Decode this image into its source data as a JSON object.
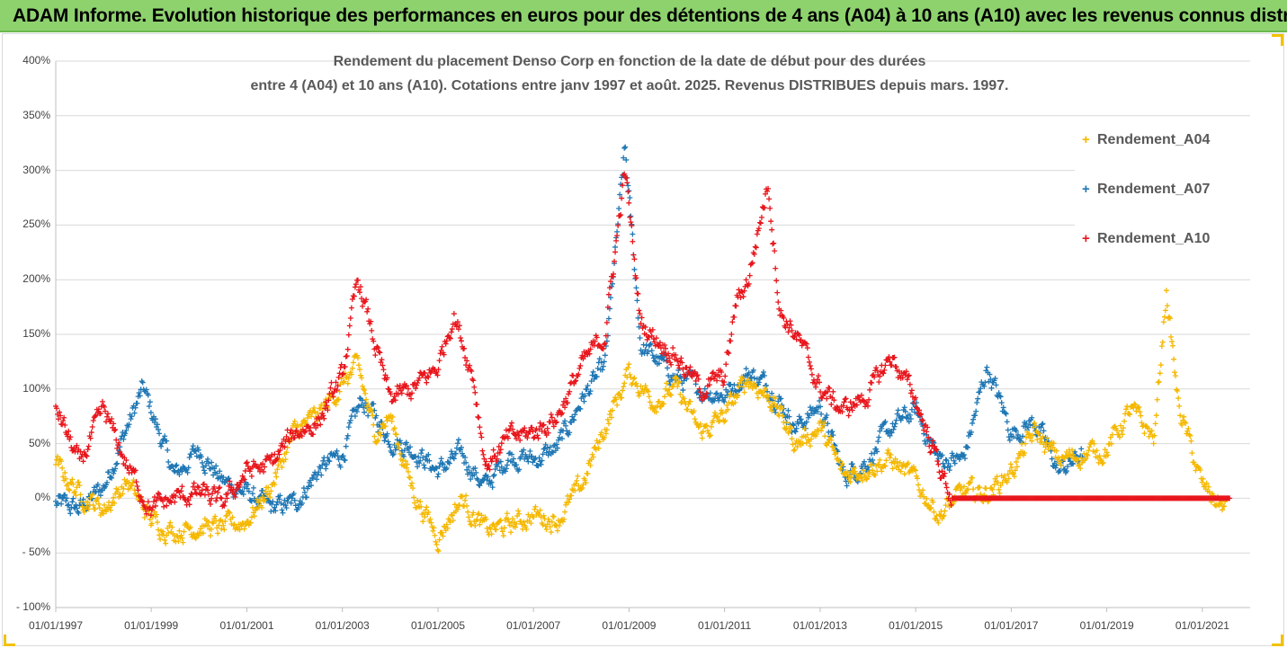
{
  "header": {
    "title": "ADAM Informe. Evolution historique des performances en euros pour des détentions de 4 ans (A04) à 10 ans (A10) avec les revenus connus distribués"
  },
  "chart_data": {
    "type": "scatter",
    "title_line1": "Rendement du placement Denso Corp en fonction de la date de début pour des durées",
    "title_line2": "entre 4 (A04) et 10 ans (A10). Cotations entre janv 1997 et août. 2025. Revenus DISTRIBUES depuis mars. 1997.",
    "xlabel": "",
    "ylabel": "",
    "y_ticks": [
      "400%",
      "350%",
      "300%",
      "250%",
      "200%",
      "150%",
      "100%",
      "50%",
      "0%",
      "- 50%",
      "- 100%"
    ],
    "ylim": [
      -100,
      400
    ],
    "x_ticks": [
      "01/01/1997",
      "01/01/1999",
      "01/01/2001",
      "01/01/2003",
      "01/01/2005",
      "01/01/2007",
      "01/01/2009",
      "01/01/2011",
      "01/01/2013",
      "01/01/2015",
      "01/01/2017",
      "01/01/2019",
      "01/01/2021"
    ],
    "xlim": [
      "1997-01-01",
      "2022-01-01"
    ],
    "grid": "horizontal",
    "legend_position": "top-right",
    "marker": "+",
    "series": [
      {
        "name": "Rendement_A04",
        "color": "#f5b800",
        "x_start": "1997-01-01",
        "x_end": "2021-08-01",
        "points": [
          [
            "1997-01-01",
            30
          ],
          [
            "1997-07-01",
            5
          ],
          [
            "1998-01-01",
            -10
          ],
          [
            "1998-07-01",
            15
          ],
          [
            "1999-01-01",
            -20
          ],
          [
            "1999-07-01",
            -30
          ],
          [
            "2000-01-01",
            -25
          ],
          [
            "2000-07-01",
            -28
          ],
          [
            "2001-01-01",
            -20
          ],
          [
            "2001-07-01",
            10
          ],
          [
            "2002-01-01",
            60
          ],
          [
            "2002-07-01",
            75
          ],
          [
            "2003-01-01",
            105
          ],
          [
            "2003-05-01",
            120
          ],
          [
            "2003-09-01",
            60
          ],
          [
            "2004-01-01",
            75
          ],
          [
            "2004-07-01",
            5
          ],
          [
            "2005-01-01",
            -35
          ],
          [
            "2005-07-01",
            0
          ],
          [
            "2006-01-01",
            -30
          ],
          [
            "2006-07-01",
            -25
          ],
          [
            "2007-01-01",
            -15
          ],
          [
            "2007-07-01",
            -20
          ],
          [
            "2008-01-01",
            10
          ],
          [
            "2008-07-01",
            65
          ],
          [
            "2009-01-01",
            115
          ],
          [
            "2009-07-01",
            90
          ],
          [
            "2010-01-01",
            100
          ],
          [
            "2010-07-01",
            60
          ],
          [
            "2011-01-01",
            75
          ],
          [
            "2011-07-01",
            110
          ],
          [
            "2012-01-01",
            90
          ],
          [
            "2012-07-01",
            50
          ],
          [
            "2013-01-01",
            65
          ],
          [
            "2013-07-01",
            20
          ],
          [
            "2014-01-01",
            30
          ],
          [
            "2014-07-01",
            35
          ],
          [
            "2015-01-01",
            15
          ],
          [
            "2015-07-01",
            -15
          ],
          [
            "2016-01-01",
            5
          ],
          [
            "2016-07-01",
            5
          ],
          [
            "2017-01-01",
            25
          ],
          [
            "2017-07-01",
            60
          ],
          [
            "2018-01-01",
            35
          ],
          [
            "2018-07-01",
            40
          ],
          [
            "2019-01-01",
            45
          ],
          [
            "2019-07-01",
            80
          ],
          [
            "2020-01-01",
            55
          ],
          [
            "2020-04-01",
            190
          ],
          [
            "2020-07-01",
            85
          ],
          [
            "2021-01-01",
            10
          ],
          [
            "2021-07-01",
            -10
          ]
        ]
      },
      {
        "name": "Rendement_A07",
        "color": "#1f77b4",
        "x_start": "1997-01-01",
        "x_end": "2018-08-01",
        "points": [
          [
            "1997-01-01",
            -5
          ],
          [
            "1997-07-01",
            -10
          ],
          [
            "1998-01-01",
            10
          ],
          [
            "1998-07-01",
            65
          ],
          [
            "1998-11-01",
            100
          ],
          [
            "1999-03-01",
            60
          ],
          [
            "1999-07-01",
            20
          ],
          [
            "2000-01-01",
            45
          ],
          [
            "2000-07-01",
            15
          ],
          [
            "2001-01-01",
            5
          ],
          [
            "2001-07-01",
            -10
          ],
          [
            "2002-01-01",
            -5
          ],
          [
            "2002-07-01",
            25
          ],
          [
            "2003-01-01",
            40
          ],
          [
            "2003-06-01",
            90
          ],
          [
            "2004-01-01",
            55
          ],
          [
            "2004-07-01",
            45
          ],
          [
            "2005-01-01",
            25
          ],
          [
            "2005-07-01",
            40
          ],
          [
            "2006-01-01",
            10
          ],
          [
            "2006-07-01",
            40
          ],
          [
            "2007-01-01",
            35
          ],
          [
            "2007-07-01",
            45
          ],
          [
            "2008-01-01",
            90
          ],
          [
            "2008-07-01",
            120
          ],
          [
            "2008-12-01",
            320
          ],
          [
            "2009-04-01",
            140
          ],
          [
            "2010-01-01",
            110
          ],
          [
            "2010-07-01",
            100
          ],
          [
            "2011-01-01",
            95
          ],
          [
            "2011-07-01",
            115
          ],
          [
            "2012-01-01",
            100
          ],
          [
            "2012-07-01",
            65
          ],
          [
            "2013-01-01",
            85
          ],
          [
            "2013-07-01",
            20
          ],
          [
            "2014-01-01",
            35
          ],
          [
            "2014-07-01",
            65
          ],
          [
            "2015-01-01",
            80
          ],
          [
            "2015-07-01",
            35
          ],
          [
            "2016-01-01",
            35
          ],
          [
            "2016-07-01",
            120
          ],
          [
            "2017-01-01",
            60
          ],
          [
            "2017-07-01",
            70
          ],
          [
            "2018-01-01",
            25
          ],
          [
            "2018-07-01",
            40
          ]
        ]
      },
      {
        "name": "Rendement_A10",
        "color": "#e8161c",
        "x_start": "1997-01-01",
        "x_end": "2021-08-01",
        "points": [
          [
            "1997-01-01",
            85
          ],
          [
            "1997-07-01",
            30
          ],
          [
            "1998-01-01",
            80
          ],
          [
            "1998-07-01",
            30
          ],
          [
            "1999-01-01",
            -10
          ],
          [
            "1999-07-01",
            0
          ],
          [
            "2000-01-01",
            5
          ],
          [
            "2000-07-01",
            -5
          ],
          [
            "2001-01-01",
            25
          ],
          [
            "2001-07-01",
            30
          ],
          [
            "2002-01-01",
            60
          ],
          [
            "2002-07-01",
            70
          ],
          [
            "2003-01-01",
            110
          ],
          [
            "2003-05-01",
            200
          ],
          [
            "2003-10-01",
            130
          ],
          [
            "2004-01-01",
            90
          ],
          [
            "2004-07-01",
            100
          ],
          [
            "2005-01-01",
            120
          ],
          [
            "2005-05-01",
            170
          ],
          [
            "2005-10-01",
            110
          ],
          [
            "2006-01-01",
            30
          ],
          [
            "2006-07-01",
            55
          ],
          [
            "2007-01-01",
            60
          ],
          [
            "2007-07-01",
            75
          ],
          [
            "2008-01-01",
            120
          ],
          [
            "2008-07-01",
            150
          ],
          [
            "2008-12-01",
            300
          ],
          [
            "2009-04-01",
            160
          ],
          [
            "2010-01-01",
            130
          ],
          [
            "2010-07-01",
            100
          ],
          [
            "2011-01-01",
            110
          ],
          [
            "2011-04-01",
            180
          ],
          [
            "2011-07-01",
            200
          ],
          [
            "2011-12-01",
            290
          ],
          [
            "2012-03-01",
            170
          ],
          [
            "2012-07-01",
            150
          ],
          [
            "2013-01-01",
            100
          ],
          [
            "2013-07-01",
            80
          ],
          [
            "2014-01-01",
            95
          ],
          [
            "2014-07-01",
            130
          ],
          [
            "2015-01-01",
            90
          ],
          [
            "2015-07-01",
            30
          ],
          [
            "2015-10-01",
            0
          ],
          [
            "2021-08-01",
            0
          ]
        ]
      }
    ]
  }
}
